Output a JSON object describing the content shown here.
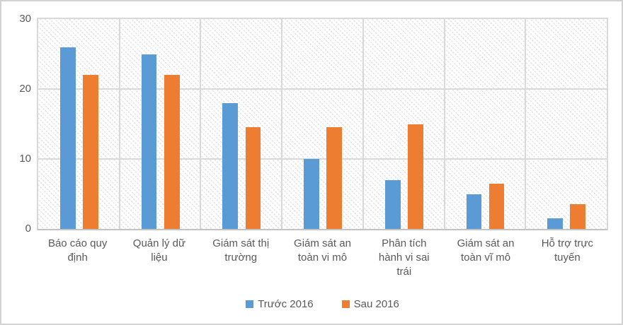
{
  "chart_data": {
    "type": "bar",
    "categories": [
      "Báo cáo quy định",
      "Quản lý dữ liệu",
      "Giám sát thị trường",
      "Giám sát an toàn vi mô",
      "Phân tích hành vi sai trái",
      "Giám sát an toàn vĩ mô",
      "Hỗ trợ trực tuyến"
    ],
    "series": [
      {
        "name": "Trước 2016",
        "color": "#5B9BD5",
        "values": [
          26,
          25,
          18,
          10,
          7,
          5,
          1.5
        ]
      },
      {
        "name": "Sau 2016",
        "color": "#ED7D31",
        "values": [
          22,
          22,
          14.5,
          14.5,
          15,
          6.5,
          3.5
        ]
      }
    ],
    "title": "",
    "xlabel": "",
    "ylabel": "",
    "ylim": [
      0,
      30
    ],
    "yticks": [
      0,
      10,
      20,
      30
    ],
    "grid": true,
    "plot_background": "diagonal-hatch",
    "legend_position": "bottom-center"
  },
  "colors": {
    "series_blue": "#5B9BD5",
    "series_orange": "#ED7D31",
    "gridline": "#D9D9D9",
    "axis_line": "#C3C3C3",
    "text": "#595959",
    "chart_border": "#D2D2D2",
    "hatch": "#E2E2E2"
  }
}
